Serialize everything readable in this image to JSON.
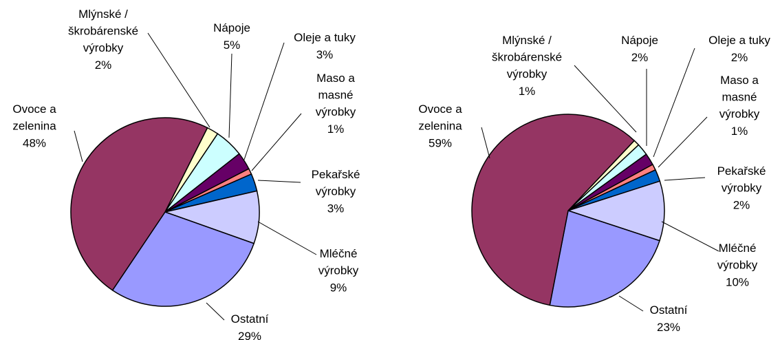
{
  "chart_data": [
    {
      "type": "pie",
      "categories": [
        "Mlýnské /\nškrobárenské\nvýrobky",
        "Nápoje",
        "Oleje  a tuky",
        "Maso a\nmasné\nvýrobky",
        "Pekařské\nvýrobky",
        "Mléčné\nvýrobky",
        "Ostatní",
        "Ovoce  a\nzelenina"
      ],
      "values": [
        2,
        5,
        3,
        1,
        3,
        9,
        29,
        48
      ],
      "value_labels": [
        "2%",
        "5%",
        "3%",
        "1%",
        "3%",
        "9%",
        "29%",
        "48%"
      ],
      "colors": [
        "#ffffcc",
        "#ccffff",
        "#660066",
        "#ff8080",
        "#0066cc",
        "#ccccff",
        "#9999ff",
        "#953563"
      ]
    },
    {
      "type": "pie",
      "categories": [
        "Mlýnské /\nškrobárenské\nvýrobky",
        "Nápoje",
        "Oleje  a tuky",
        "Maso a\nmasné\nvýrobky",
        "Pekařské\nvýrobky",
        "Mléčné\nvýrobky",
        "Ostatní",
        "Ovoce  a\nzelenina"
      ],
      "values": [
        1,
        2,
        2,
        1,
        2,
        10,
        23,
        59
      ],
      "value_labels": [
        "1%",
        "2%",
        "2%",
        "1%",
        "2%",
        "10%",
        "23%",
        "59%"
      ],
      "colors": [
        "#ffffcc",
        "#ccffff",
        "#660066",
        "#ff8080",
        "#0066cc",
        "#ccccff",
        "#9999ff",
        "#953563"
      ]
    }
  ]
}
